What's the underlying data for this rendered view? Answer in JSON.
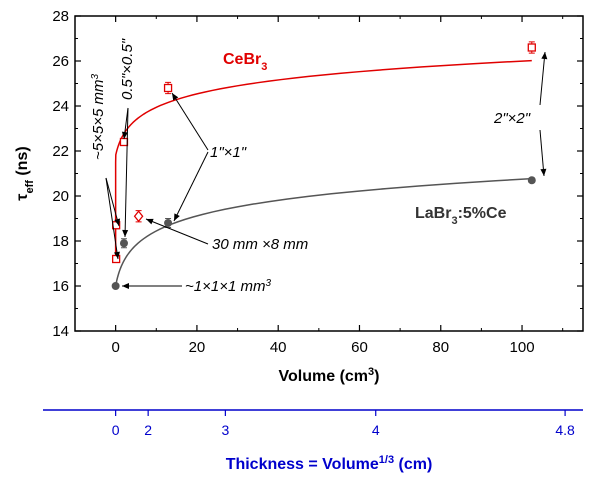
{
  "chart_data": {
    "type": "scatter",
    "x_axis": {
      "label": "Volume (cm",
      "label_sup": "3",
      "label_tail": ")",
      "lim": [
        -10,
        115
      ],
      "ticks": [
        0,
        20,
        40,
        60,
        80,
        100
      ]
    },
    "y_axis": {
      "label_main": "τ",
      "label_sub": "eff",
      "label_tail": " (ns)",
      "lim": [
        14,
        28
      ],
      "ticks": [
        14,
        16,
        18,
        20,
        22,
        24,
        26,
        28
      ]
    },
    "secondary_axis": {
      "title_main": "Thickness = Volume",
      "title_sup": "1/3",
      "title_tail": " (cm)",
      "color": "#0000cc",
      "ticks": [
        {
          "label": "0",
          "value": 0
        },
        {
          "label": "2",
          "value": 2
        },
        {
          "label": "3",
          "value": 3
        },
        {
          "label": "4",
          "value": 4
        },
        {
          "label": "4.8",
          "value": 4.8
        }
      ]
    },
    "series": [
      {
        "name": "CeBr",
        "name_sub": "3",
        "color": "#e00000",
        "marker": "open-square",
        "points": [
          {
            "x": 0.125,
            "y": 18.7,
            "err": 0.15
          },
          {
            "x": 0.125,
            "y": 17.2,
            "err": 0.12
          },
          {
            "x": 2.05,
            "y": 22.4,
            "err": 0.15
          },
          {
            "x": 12.9,
            "y": 24.8,
            "err": 0.25
          },
          {
            "x": 102.4,
            "y": 26.6,
            "err": 0.25
          }
        ],
        "fit": "log"
      },
      {
        "name": "LaBr",
        "name_sub": "3",
        "name_tail": ":5%Ce",
        "color": "#555555",
        "marker": "filled-circle",
        "points": [
          {
            "x": 0.001,
            "y": 16.0,
            "err": 0.08
          },
          {
            "x": 2.05,
            "y": 17.9,
            "err": 0.2
          },
          {
            "x": 12.9,
            "y": 18.8,
            "err": 0.2
          },
          {
            "x": 102.4,
            "y": 20.7,
            "err": 0.1
          }
        ],
        "fit": "log"
      },
      {
        "name": "",
        "color": "#e00000",
        "marker": "open-diamond",
        "points": [
          {
            "x": 5.65,
            "y": 19.1,
            "err": 0.25
          }
        ]
      }
    ],
    "annotations": [
      {
        "text": "~5×5×5 mm",
        "sup": "3",
        "rotate": true
      },
      {
        "text": "0.5\"×0.5\"",
        "sup": "",
        "rotate": true
      },
      {
        "text": "1\"×1\"",
        "sup": ""
      },
      {
        "text": "2\"×2\"",
        "sup": ""
      },
      {
        "text": "30 mm ×8 mm",
        "sup": ""
      },
      {
        "text": "~1×1×1 mm",
        "sup": "3"
      }
    ]
  }
}
